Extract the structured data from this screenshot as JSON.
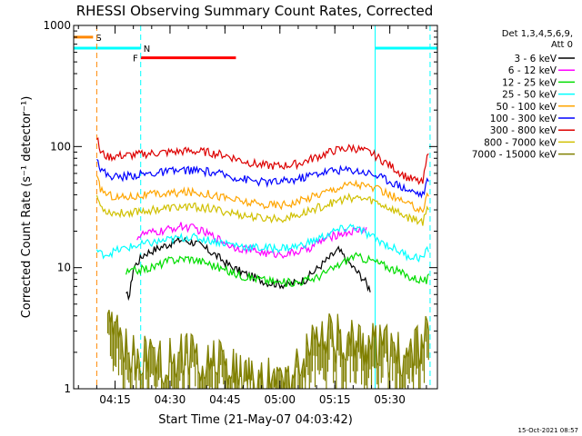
{
  "chart_data": {
    "type": "line",
    "title": "RHESSI Observing Summary Count Rates, Corrected",
    "xlabel": "Start Time (21-May-07 04:03:42)",
    "ylabel": "Corrected Count Rate (s⁻¹ detector⁻¹)",
    "yscale": "log",
    "ylim": [
      1,
      1000
    ],
    "xlim": [
      "04:03:42",
      "05:43:00"
    ],
    "x_ticks": [
      "04:15",
      "04:30",
      "04:45",
      "05:00",
      "05:15",
      "05:30"
    ],
    "y_ticks": [
      "1",
      "10",
      "100",
      "1000"
    ],
    "timestamp": "15-Oct-2021 08:57",
    "legend": {
      "header": "Det 1,3,4,5,6,9,",
      "subheader": "Att 0",
      "placement": "right"
    },
    "series": [
      {
        "name": "3 - 6 keV",
        "color": "#000000",
        "t": [
          "04:18",
          "04:19",
          "04:20",
          "04:23",
          "04:28",
          "04:33",
          "04:37",
          "04:42",
          "04:47",
          "04:52",
          "04:57",
          "05:02",
          "05:07",
          "05:12",
          "05:16",
          "05:20",
          "05:23",
          "05:24",
          "05:25"
        ],
        "y": [
          5.8,
          6.0,
          10,
          13,
          15,
          17,
          16,
          13,
          10,
          8.5,
          7.5,
          7.2,
          8.0,
          11,
          14,
          10,
          8,
          7,
          6.5
        ]
      },
      {
        "name": "6 - 12 keV",
        "color": "#ff00ff",
        "t": [
          "04:21",
          "04:23",
          "04:28",
          "04:33",
          "04:37",
          "04:42",
          "04:47",
          "04:52",
          "04:57",
          "05:02",
          "05:07",
          "05:12",
          "05:16",
          "05:20",
          "05:24"
        ],
        "y": [
          18,
          19,
          20,
          22,
          21,
          18,
          15,
          14,
          13,
          13,
          14,
          17,
          19,
          20,
          21
        ]
      },
      {
        "name": "12 - 25 keV",
        "color": "#00dd00",
        "t": [
          "04:18",
          "04:20",
          "04:25",
          "04:30",
          "04:35",
          "04:40",
          "04:45",
          "04:50",
          "04:55",
          "05:00",
          "05:05",
          "05:10",
          "05:15",
          "05:20",
          "05:25",
          "05:30",
          "05:35",
          "05:38",
          "05:40",
          "05:41"
        ],
        "y": [
          9.0,
          9.4,
          10,
          11.5,
          12,
          11,
          9.5,
          8.5,
          8,
          7.5,
          7.6,
          8.3,
          10,
          12.5,
          11.5,
          10,
          8.5,
          8,
          7.8,
          8.5
        ]
      },
      {
        "name": "25 - 50 keV",
        "color": "#00ffff",
        "t": [
          "04:10",
          "04:11",
          "04:13",
          "04:16",
          "04:20",
          "04:25",
          "04:30",
          "04:35",
          "04:40",
          "04:45",
          "04:50",
          "04:55",
          "05:00",
          "05:05",
          "05:10",
          "05:15",
          "05:20",
          "05:25",
          "05:30",
          "05:35",
          "05:39",
          "05:41"
        ],
        "y": [
          14,
          13,
          13,
          14,
          15,
          16,
          17,
          18,
          17,
          16,
          15,
          14.5,
          14.5,
          15,
          17,
          20,
          22,
          18,
          15,
          12.5,
          12,
          15
        ]
      },
      {
        "name": "50 - 100 keV",
        "color": "#ffa500",
        "t": [
          "04:10",
          "04:11",
          "04:13",
          "04:16",
          "04:20",
          "04:25",
          "04:30",
          "04:35",
          "04:40",
          "04:45",
          "04:50",
          "04:55",
          "05:00",
          "05:05",
          "05:10",
          "05:15",
          "05:20",
          "05:25",
          "05:30",
          "05:35",
          "05:39",
          "05:41"
        ],
        "y": [
          55,
          45,
          40,
          38,
          39,
          40,
          41,
          42,
          41,
          38,
          35,
          33,
          33,
          35,
          40,
          45,
          50,
          46,
          40,
          33,
          30,
          45
        ]
      },
      {
        "name": "100 - 300 keV",
        "color": "#0000ff",
        "t": [
          "04:10",
          "04:11",
          "04:13",
          "04:16",
          "04:20",
          "04:25",
          "04:30",
          "04:35",
          "04:40",
          "04:45",
          "04:50",
          "04:55",
          "05:00",
          "05:05",
          "05:10",
          "05:15",
          "05:20",
          "05:25",
          "05:30",
          "05:35",
          "05:39",
          "05:41"
        ],
        "y": [
          85,
          65,
          58,
          56,
          58,
          60,
          62,
          64,
          62,
          58,
          54,
          51,
          51,
          54,
          60,
          64,
          64,
          60,
          52,
          44,
          40,
          60
        ]
      },
      {
        "name": "300 - 800 keV",
        "color": "#dd0000",
        "t": [
          "04:10",
          "04:11",
          "04:13",
          "04:16",
          "04:20",
          "04:25",
          "04:30",
          "04:35",
          "04:40",
          "04:45",
          "04:50",
          "04:55",
          "05:00",
          "05:05",
          "05:10",
          "05:15",
          "05:20",
          "05:25",
          "05:30",
          "05:35",
          "05:39",
          "05:41"
        ],
        "y": [
          120,
          90,
          82,
          84,
          85,
          88,
          90,
          92,
          90,
          85,
          76,
          70,
          69,
          72,
          82,
          93,
          98,
          88,
          70,
          55,
          50,
          110
        ]
      },
      {
        "name": "800 - 7000 keV",
        "color": "#d0c000",
        "t": [
          "04:10",
          "04:11",
          "04:13",
          "04:16",
          "04:20",
          "04:25",
          "04:30",
          "04:35",
          "04:40",
          "04:45",
          "04:50",
          "04:55",
          "05:00",
          "05:05",
          "05:10",
          "05:15",
          "05:20",
          "05:25",
          "05:30",
          "05:35",
          "05:39",
          "05:41"
        ],
        "y": [
          40,
          32,
          29,
          28,
          29,
          30,
          31,
          32,
          31,
          29,
          27,
          25.5,
          25.5,
          27,
          31,
          35,
          38,
          36,
          31,
          26,
          24,
          35
        ]
      },
      {
        "name": "7000 - 15000 keV",
        "color": "#808000",
        "t": [
          "04:13",
          "04:16",
          "04:18",
          "04:20",
          "04:25",
          "04:30",
          "04:35",
          "04:40",
          "04:45",
          "04:50",
          "04:55",
          "05:00",
          "05:05",
          "05:10",
          "05:15",
          "05:20",
          "05:25",
          "05:30",
          "05:35",
          "05:39",
          "05:41"
        ],
        "y": [
          3.5,
          2.5,
          2.0,
          2.0,
          1.8,
          1.8,
          1.9,
          1.8,
          1.6,
          1.2,
          1.1,
          1.1,
          1.5,
          2.4,
          2.6,
          2.6,
          2.4,
          2.0,
          2.0,
          2.0,
          4.0
        ]
      }
    ],
    "flags": [
      {
        "label": "S",
        "color": "#ff8800",
        "level": 800,
        "start": "04:03:42",
        "end": "04:09"
      },
      {
        "label": "N",
        "color": "#00ffff",
        "level": 650,
        "start": "04:03:42",
        "end": "04:22"
      },
      {
        "label": "N",
        "color": "#00ffff",
        "level": 650,
        "start": "05:26",
        "end": "05:43:00"
      },
      {
        "label": "F",
        "color": "#ff0000",
        "level": 540,
        "start": "04:22",
        "end": "04:48"
      }
    ],
    "markers": [
      {
        "time": "04:10",
        "color": "#ff8800",
        "style": "dashed"
      },
      {
        "time": "04:22",
        "color": "#00ffff",
        "style": "dashed"
      },
      {
        "time": "05:26",
        "color": "#00ffff",
        "style": "solid"
      },
      {
        "time": "05:41",
        "color": "#00ffff",
        "style": "dashed"
      }
    ]
  }
}
